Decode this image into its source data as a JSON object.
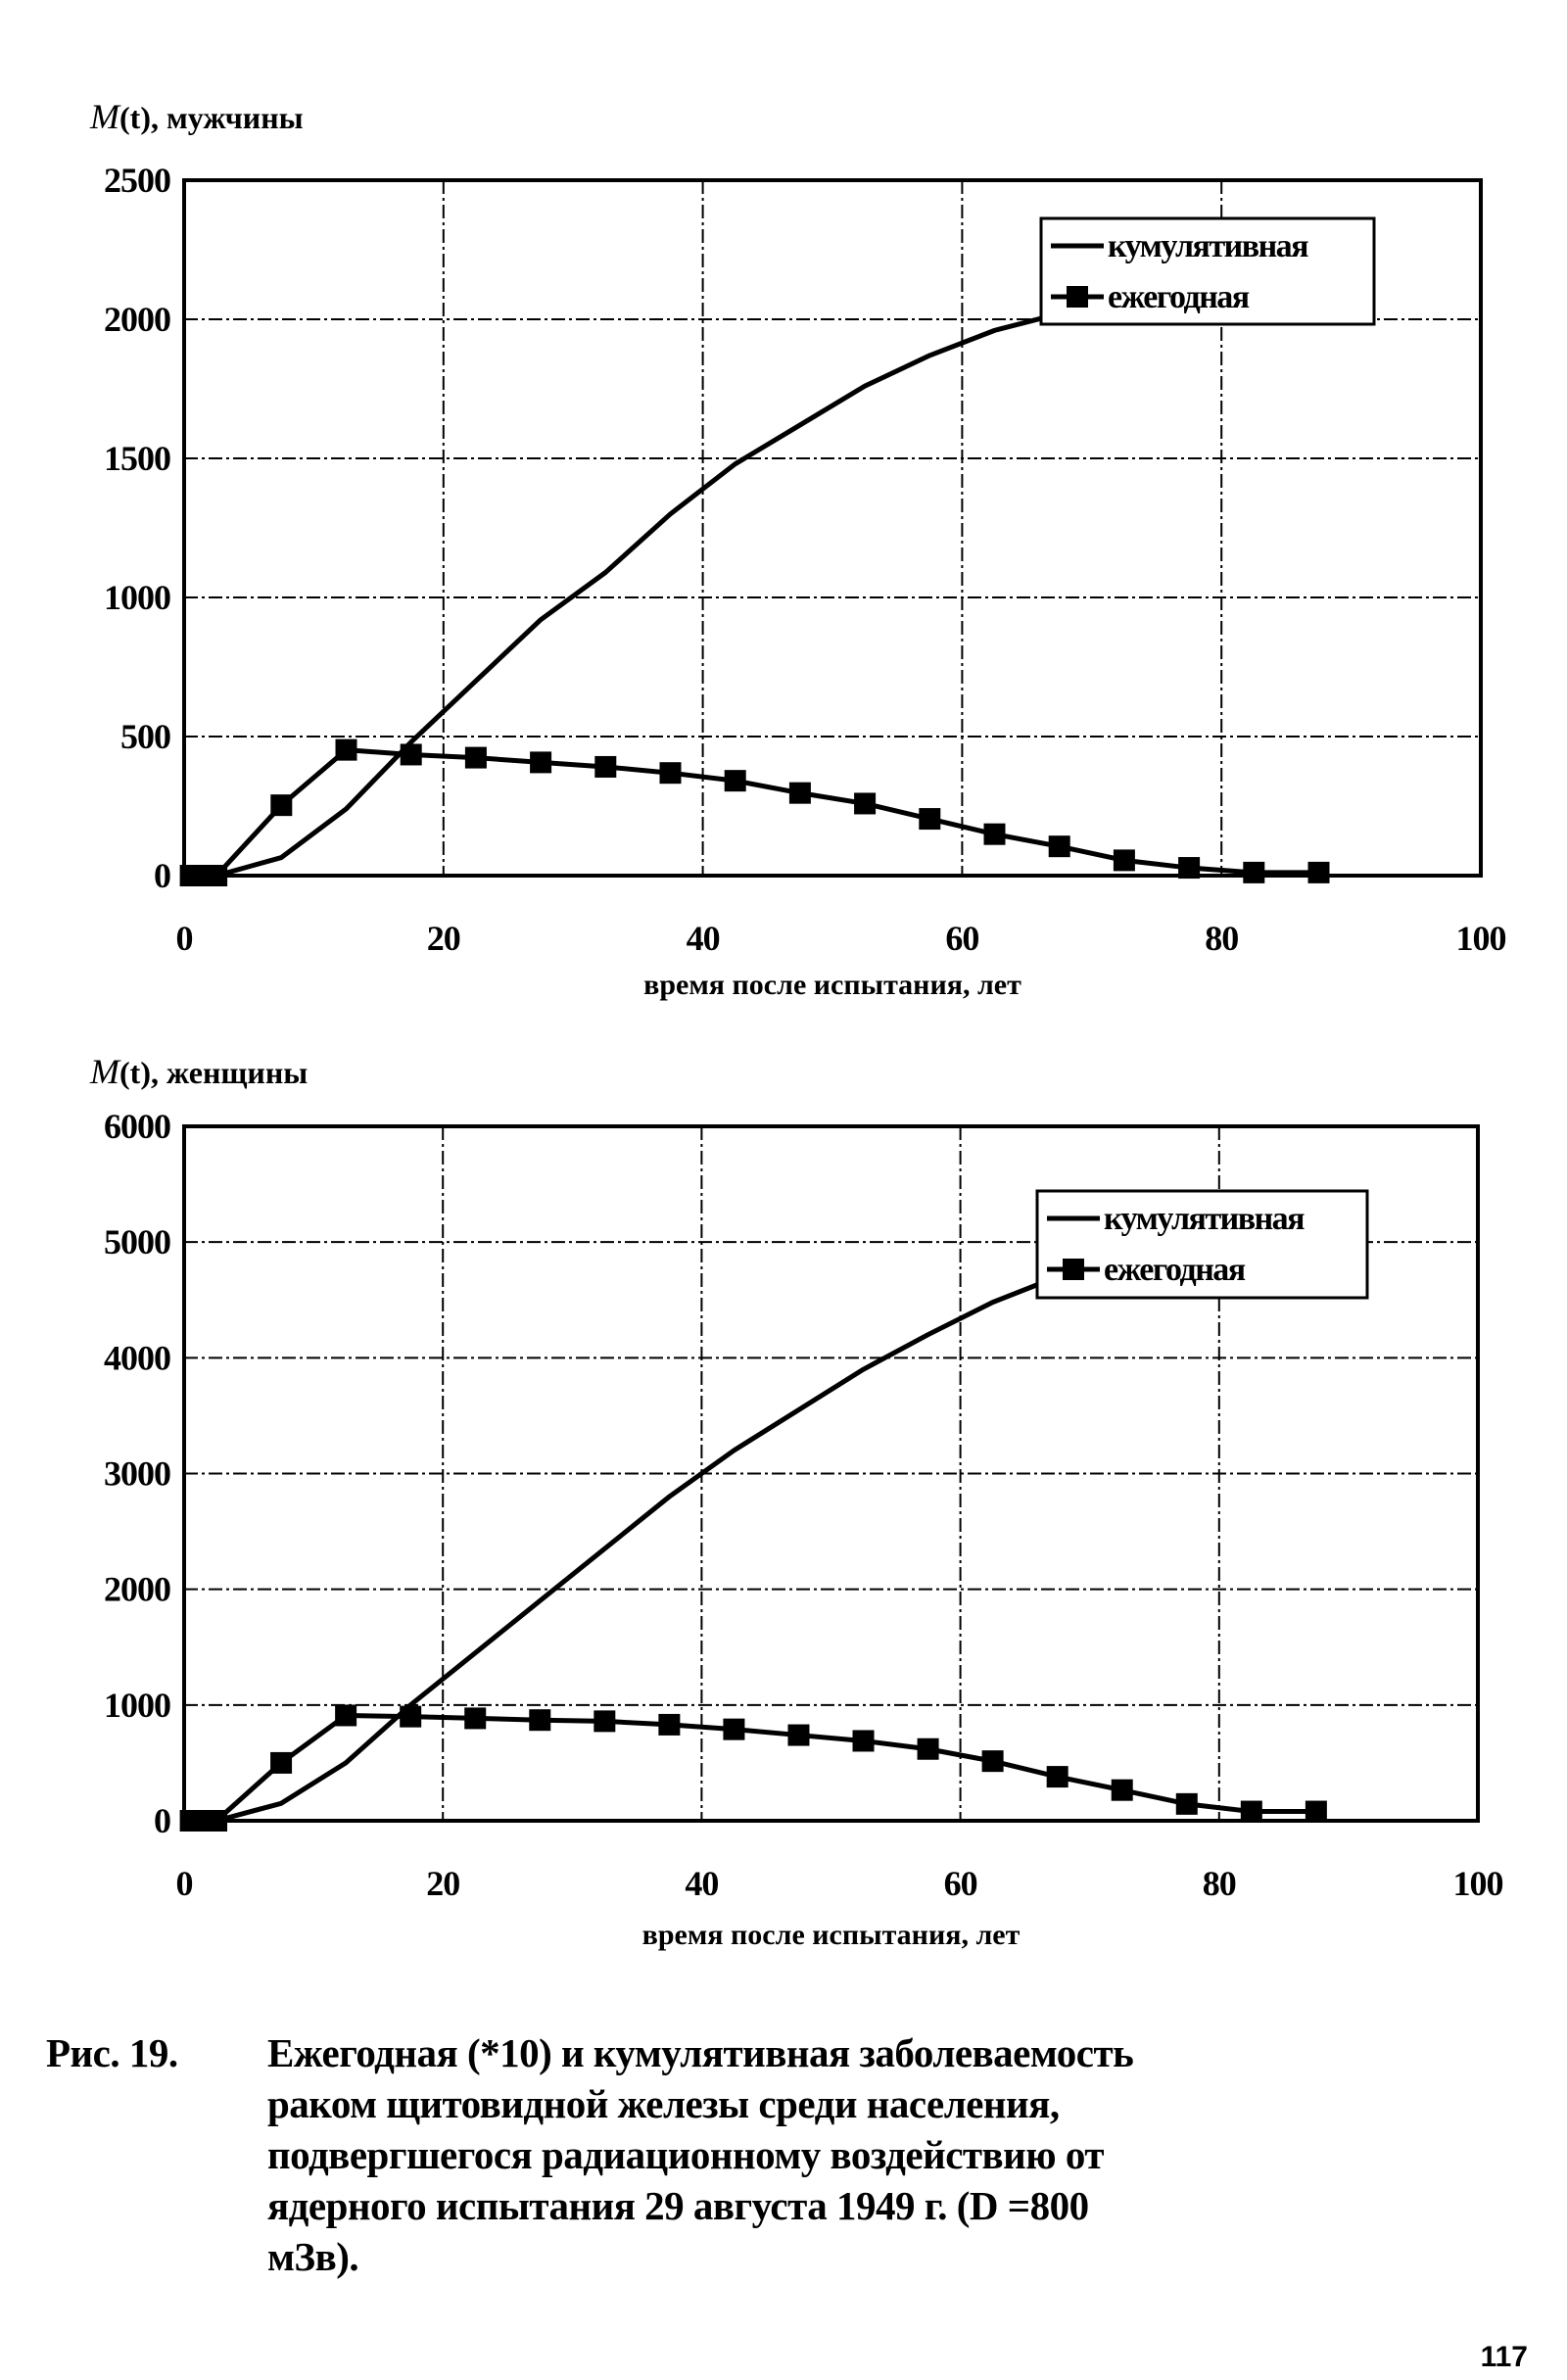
{
  "chart_data": [
    {
      "type": "line",
      "ylabel_prefix": "M",
      "ylabel_var": "(t)",
      "ylabel_suffix": ", мужчины",
      "xlabel": "время после испытания, лет",
      "xlim": [
        0,
        100
      ],
      "ylim": [
        0,
        2500
      ],
      "xticks": [
        "0",
        "20",
        "40",
        "60",
        "80",
        "100"
      ],
      "yticks": [
        "0",
        "500",
        "1000",
        "1500",
        "2000",
        "2500"
      ],
      "grid": true,
      "legend_position": "top-right",
      "series": [
        {
          "name": "кумулятивная",
          "marker": "none",
          "x": [
            0.5,
            2.5,
            7.5,
            12.5,
            17.5,
            22.5,
            27.5,
            32.5,
            37.5,
            42.5,
            47.5,
            52.5,
            57.5,
            62.5,
            67.5,
            72.5
          ],
          "y": [
            0,
            0,
            65,
            240,
            480,
            700,
            920,
            1090,
            1300,
            1480,
            1620,
            1760,
            1870,
            1960,
            2020,
            2060
          ]
        },
        {
          "name": "ежегодная",
          "marker": "square",
          "x": [
            0.5,
            1.5,
            2.5,
            7.5,
            12.5,
            17.5,
            22.5,
            27.5,
            32.5,
            37.5,
            42.5,
            47.5,
            52.5,
            57.5,
            62.5,
            67.5,
            72.5,
            77.5,
            82.5,
            87.5
          ],
          "y": [
            0,
            0,
            0,
            253,
            452,
            435,
            424,
            407,
            391,
            369,
            341,
            297,
            259,
            204,
            149,
            105,
            55,
            28,
            11,
            11
          ]
        }
      ]
    },
    {
      "type": "line",
      "ylabel_prefix": "M",
      "ylabel_var": "(t)",
      "ylabel_suffix": ", женщины",
      "xlabel": "время после испытания, лет",
      "xlim": [
        0,
        100
      ],
      "ylim": [
        0,
        6000
      ],
      "xticks": [
        "0",
        "20",
        "40",
        "60",
        "80",
        "100"
      ],
      "yticks": [
        "0",
        "1000",
        "2000",
        "3000",
        "4000",
        "5000",
        "6000"
      ],
      "grid": true,
      "legend_position": "top-right",
      "series": [
        {
          "name": "кумулятивная",
          "marker": "none",
          "x": [
            0.5,
            2.5,
            7.5,
            12.5,
            17.5,
            22.5,
            27.5,
            32.5,
            37.5,
            42.5,
            47.5,
            52.5,
            57.5,
            62.5,
            67.5,
            72.5
          ],
          "y": [
            0,
            0,
            150,
            500,
            1000,
            1450,
            1900,
            2350,
            2800,
            3200,
            3550,
            3900,
            4200,
            4480,
            4700,
            4850
          ]
        },
        {
          "name": "ежегодная",
          "marker": "square",
          "x": [
            0.5,
            1.5,
            2.5,
            7.5,
            12.5,
            17.5,
            22.5,
            27.5,
            32.5,
            37.5,
            42.5,
            47.5,
            52.5,
            57.5,
            62.5,
            67.5,
            72.5,
            77.5,
            82.5,
            87.5
          ],
          "y": [
            0,
            0,
            0,
            500,
            910,
            900,
            885,
            870,
            860,
            830,
            790,
            740,
            690,
            620,
            515,
            380,
            265,
            145,
            80,
            80
          ]
        }
      ]
    }
  ],
  "caption": {
    "number": "Рис. 19.",
    "lines": [
      "Ежегодная (*10) и кумулятивная заболеваемость",
      "раком щитовидной железы среди населения,",
      "подвергшегося радиационному воздействию от",
      "ядерного испытания 29 августа 1949 г. (D =800",
      "мЗв)."
    ]
  },
  "page_number": "117"
}
